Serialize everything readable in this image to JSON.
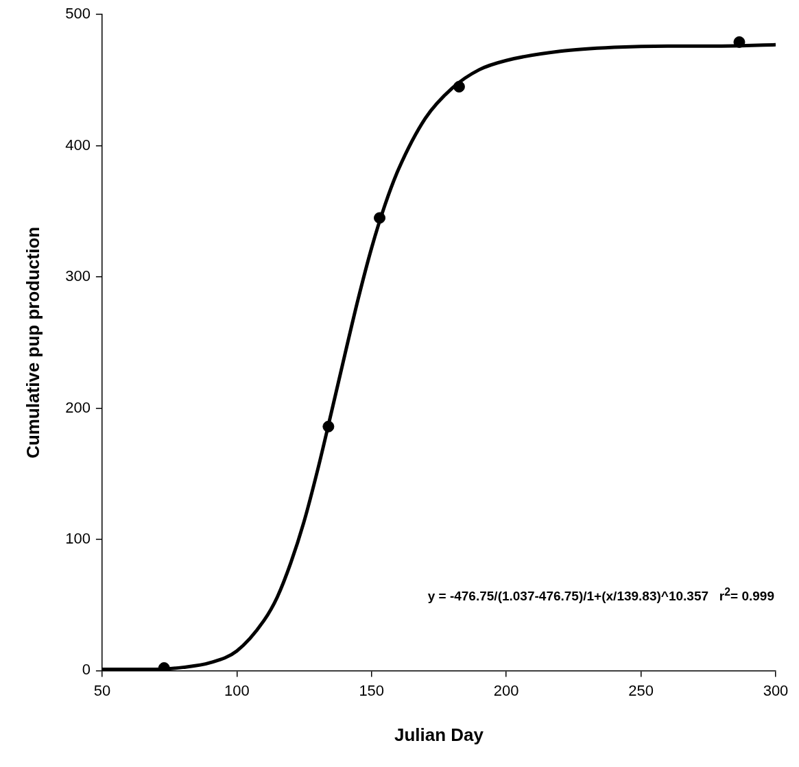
{
  "chart_data": {
    "type": "scatter",
    "xlabel": "Julian Day",
    "ylabel": "Cumulative pup production",
    "xlim": [
      50,
      300
    ],
    "xticks": [
      50,
      100,
      150,
      200,
      250,
      300
    ],
    "ylim": [
      0,
      500
    ],
    "yticks": [
      0,
      100,
      200,
      300,
      400,
      500
    ],
    "series": [
      {
        "type": "line",
        "color": "#000000",
        "line_style": "solid",
        "x": [
          50,
          60,
          70,
          80,
          90,
          100,
          110,
          115,
          120,
          125,
          130,
          135,
          140,
          145,
          150,
          155,
          160,
          170,
          180,
          190,
          200,
          220,
          240,
          260,
          280,
          300
        ],
        "values": [
          1,
          1,
          1,
          2.5,
          6,
          15,
          38,
          56,
          82,
          114,
          153,
          196,
          240,
          283,
          322,
          355,
          382,
          421,
          444,
          458,
          465,
          472,
          475,
          476,
          476,
          477
        ]
      },
      {
        "type": "scatter",
        "color": "#000000",
        "marker": "circle",
        "x": [
          73,
          134,
          153,
          182.5,
          286.5
        ],
        "values": [
          2,
          186,
          345,
          445,
          479
        ]
      }
    ],
    "annotations": [
      "y = -476.75/(1.037-476.75)/1+(x/139.83)^10.357   r$^{2}$= 0.999"
    ]
  }
}
